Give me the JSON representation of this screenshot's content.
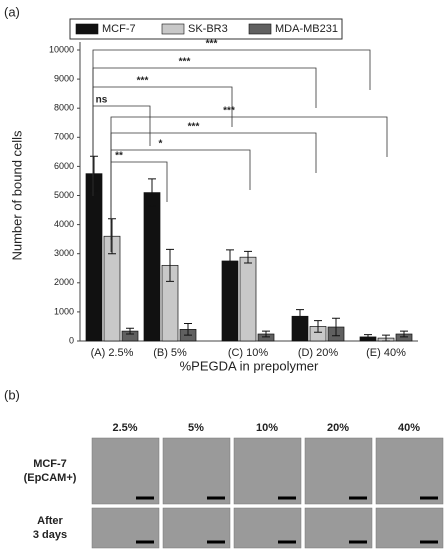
{
  "panel_labels": [
    "(a)",
    "(b)"
  ],
  "chart_data": {
    "type": "bar",
    "y_label": "Number of bound cells",
    "x_label": "%PEGDA in prepolymer",
    "categories": [
      "(A) 2.5%",
      "(B) 5%",
      "(C) 10%",
      "(D) 20%",
      "(E) 40%"
    ],
    "series": [
      {
        "name": "MCF-7",
        "color": "#111111",
        "values": [
          5750,
          5100,
          2750,
          850,
          140
        ],
        "errors": [
          600,
          470,
          380,
          230,
          80
        ]
      },
      {
        "name": "SK-BR3",
        "color": "#c8c8c8",
        "values": [
          3600,
          2600,
          2880,
          500,
          100
        ],
        "errors": [
          600,
          550,
          200,
          200,
          100
        ]
      },
      {
        "name": "MDA-MB231",
        "color": "#606060",
        "values": [
          340,
          400,
          240,
          480,
          240
        ],
        "errors": [
          100,
          200,
          100,
          300,
          100
        ]
      }
    ],
    "ylim": [
      0,
      10000
    ],
    "yticks": [
      0,
      1000,
      2000,
      3000,
      4000,
      5000,
      6000,
      7000,
      8000,
      9000,
      10000
    ],
    "annotations": [
      "***",
      "***",
      "***",
      "ns",
      "***",
      "***",
      "*",
      "**"
    ]
  },
  "panel_b": {
    "columns": [
      "2.5%",
      "5%",
      "10%",
      "20%",
      "40%"
    ],
    "rows": [
      [
        "MCF-7",
        "(EpCAM+)"
      ],
      [
        "After",
        "3 days"
      ]
    ]
  }
}
